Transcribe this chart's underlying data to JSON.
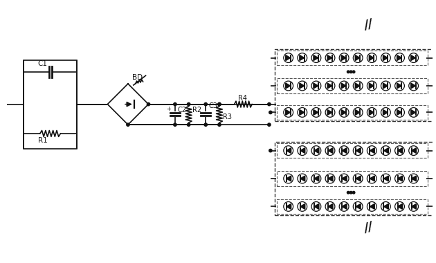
{
  "bg": "#ffffff",
  "lc": "#111111",
  "dc": "#444444",
  "figsize": [
    6.3,
    3.8
  ],
  "dpi": 100,
  "C1": "C1",
  "R1": "R1",
  "BD": "BD",
  "C2": "C2",
  "R2": "R2",
  "R3": "R3",
  "R4": "R4",
  "C3": "C3",
  "led_cols": 10,
  "led_r": 7.0
}
